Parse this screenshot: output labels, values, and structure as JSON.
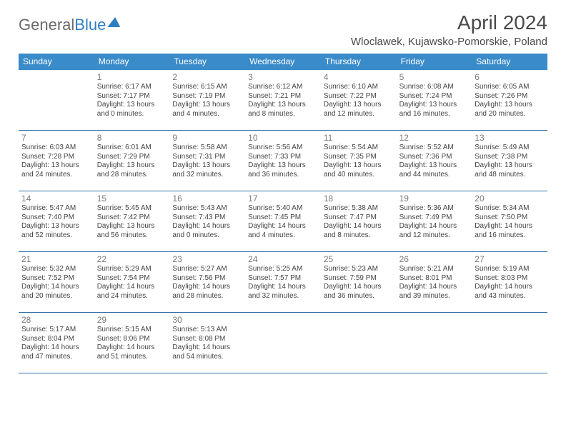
{
  "logo": {
    "part1": "General",
    "part2": "Blue"
  },
  "title": "April 2024",
  "subtitle": "Wloclawek, Kujawsko-Pomorskie, Poland",
  "dayNames": [
    "Sunday",
    "Monday",
    "Tuesday",
    "Wednesday",
    "Thursday",
    "Friday",
    "Saturday"
  ],
  "colors": {
    "headerBg": "#3a8bc9",
    "headerText": "#ffffff",
    "ruleColor": "#2f6ea6",
    "logoGray": "#6a6a6a",
    "logoBlue": "#2f7ec2",
    "bodyText": "#444444",
    "dayNumColor": "#7a7a7a",
    "background": "#ffffff"
  },
  "layout": {
    "pageWidth": 792,
    "pageHeight": 612,
    "cols": 7,
    "rows": 5,
    "cellMinHeight": 84,
    "fontSizes": {
      "title": 28,
      "subtitle": 15,
      "dayHeader": 12,
      "dayNum": 12,
      "body": 10
    }
  },
  "weeks": [
    [
      null,
      {
        "n": "1",
        "sr": "Sunrise: 6:17 AM",
        "ss": "Sunset: 7:17 PM",
        "d1": "Daylight: 13 hours",
        "d2": "and 0 minutes."
      },
      {
        "n": "2",
        "sr": "Sunrise: 6:15 AM",
        "ss": "Sunset: 7:19 PM",
        "d1": "Daylight: 13 hours",
        "d2": "and 4 minutes."
      },
      {
        "n": "3",
        "sr": "Sunrise: 6:12 AM",
        "ss": "Sunset: 7:21 PM",
        "d1": "Daylight: 13 hours",
        "d2": "and 8 minutes."
      },
      {
        "n": "4",
        "sr": "Sunrise: 6:10 AM",
        "ss": "Sunset: 7:22 PM",
        "d1": "Daylight: 13 hours",
        "d2": "and 12 minutes."
      },
      {
        "n": "5",
        "sr": "Sunrise: 6:08 AM",
        "ss": "Sunset: 7:24 PM",
        "d1": "Daylight: 13 hours",
        "d2": "and 16 minutes."
      },
      {
        "n": "6",
        "sr": "Sunrise: 6:05 AM",
        "ss": "Sunset: 7:26 PM",
        "d1": "Daylight: 13 hours",
        "d2": "and 20 minutes."
      }
    ],
    [
      {
        "n": "7",
        "sr": "Sunrise: 6:03 AM",
        "ss": "Sunset: 7:28 PM",
        "d1": "Daylight: 13 hours",
        "d2": "and 24 minutes."
      },
      {
        "n": "8",
        "sr": "Sunrise: 6:01 AM",
        "ss": "Sunset: 7:29 PM",
        "d1": "Daylight: 13 hours",
        "d2": "and 28 minutes."
      },
      {
        "n": "9",
        "sr": "Sunrise: 5:58 AM",
        "ss": "Sunset: 7:31 PM",
        "d1": "Daylight: 13 hours",
        "d2": "and 32 minutes."
      },
      {
        "n": "10",
        "sr": "Sunrise: 5:56 AM",
        "ss": "Sunset: 7:33 PM",
        "d1": "Daylight: 13 hours",
        "d2": "and 36 minutes."
      },
      {
        "n": "11",
        "sr": "Sunrise: 5:54 AM",
        "ss": "Sunset: 7:35 PM",
        "d1": "Daylight: 13 hours",
        "d2": "and 40 minutes."
      },
      {
        "n": "12",
        "sr": "Sunrise: 5:52 AM",
        "ss": "Sunset: 7:36 PM",
        "d1": "Daylight: 13 hours",
        "d2": "and 44 minutes."
      },
      {
        "n": "13",
        "sr": "Sunrise: 5:49 AM",
        "ss": "Sunset: 7:38 PM",
        "d1": "Daylight: 13 hours",
        "d2": "and 48 minutes."
      }
    ],
    [
      {
        "n": "14",
        "sr": "Sunrise: 5:47 AM",
        "ss": "Sunset: 7:40 PM",
        "d1": "Daylight: 13 hours",
        "d2": "and 52 minutes."
      },
      {
        "n": "15",
        "sr": "Sunrise: 5:45 AM",
        "ss": "Sunset: 7:42 PM",
        "d1": "Daylight: 13 hours",
        "d2": "and 56 minutes."
      },
      {
        "n": "16",
        "sr": "Sunrise: 5:43 AM",
        "ss": "Sunset: 7:43 PM",
        "d1": "Daylight: 14 hours",
        "d2": "and 0 minutes."
      },
      {
        "n": "17",
        "sr": "Sunrise: 5:40 AM",
        "ss": "Sunset: 7:45 PM",
        "d1": "Daylight: 14 hours",
        "d2": "and 4 minutes."
      },
      {
        "n": "18",
        "sr": "Sunrise: 5:38 AM",
        "ss": "Sunset: 7:47 PM",
        "d1": "Daylight: 14 hours",
        "d2": "and 8 minutes."
      },
      {
        "n": "19",
        "sr": "Sunrise: 5:36 AM",
        "ss": "Sunset: 7:49 PM",
        "d1": "Daylight: 14 hours",
        "d2": "and 12 minutes."
      },
      {
        "n": "20",
        "sr": "Sunrise: 5:34 AM",
        "ss": "Sunset: 7:50 PM",
        "d1": "Daylight: 14 hours",
        "d2": "and 16 minutes."
      }
    ],
    [
      {
        "n": "21",
        "sr": "Sunrise: 5:32 AM",
        "ss": "Sunset: 7:52 PM",
        "d1": "Daylight: 14 hours",
        "d2": "and 20 minutes."
      },
      {
        "n": "22",
        "sr": "Sunrise: 5:29 AM",
        "ss": "Sunset: 7:54 PM",
        "d1": "Daylight: 14 hours",
        "d2": "and 24 minutes."
      },
      {
        "n": "23",
        "sr": "Sunrise: 5:27 AM",
        "ss": "Sunset: 7:56 PM",
        "d1": "Daylight: 14 hours",
        "d2": "and 28 minutes."
      },
      {
        "n": "24",
        "sr": "Sunrise: 5:25 AM",
        "ss": "Sunset: 7:57 PM",
        "d1": "Daylight: 14 hours",
        "d2": "and 32 minutes."
      },
      {
        "n": "25",
        "sr": "Sunrise: 5:23 AM",
        "ss": "Sunset: 7:59 PM",
        "d1": "Daylight: 14 hours",
        "d2": "and 36 minutes."
      },
      {
        "n": "26",
        "sr": "Sunrise: 5:21 AM",
        "ss": "Sunset: 8:01 PM",
        "d1": "Daylight: 14 hours",
        "d2": "and 39 minutes."
      },
      {
        "n": "27",
        "sr": "Sunrise: 5:19 AM",
        "ss": "Sunset: 8:03 PM",
        "d1": "Daylight: 14 hours",
        "d2": "and 43 minutes."
      }
    ],
    [
      {
        "n": "28",
        "sr": "Sunrise: 5:17 AM",
        "ss": "Sunset: 8:04 PM",
        "d1": "Daylight: 14 hours",
        "d2": "and 47 minutes."
      },
      {
        "n": "29",
        "sr": "Sunrise: 5:15 AM",
        "ss": "Sunset: 8:06 PM",
        "d1": "Daylight: 14 hours",
        "d2": "and 51 minutes."
      },
      {
        "n": "30",
        "sr": "Sunrise: 5:13 AM",
        "ss": "Sunset: 8:08 PM",
        "d1": "Daylight: 14 hours",
        "d2": "and 54 minutes."
      },
      null,
      null,
      null,
      null
    ]
  ]
}
